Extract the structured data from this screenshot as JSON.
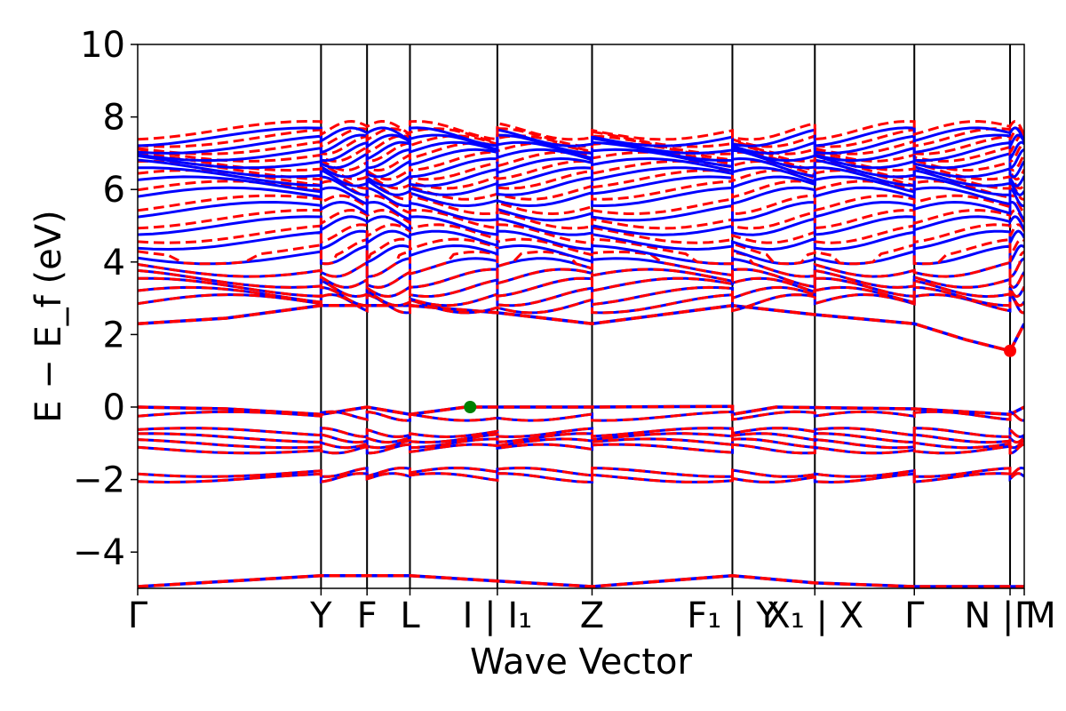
{
  "chart_data": {
    "type": "line",
    "xlabel": "Wave Vector",
    "ylabel": "E − E_f (eV)",
    "ylim": [
      -5,
      10
    ],
    "y_ticks": [
      -4,
      -2,
      0,
      2,
      4,
      6,
      8,
      10
    ],
    "y_tick_labels": [
      "−4",
      "−2",
      "0",
      "2",
      "4",
      "6",
      "8",
      "10"
    ],
    "xlim": [
      0,
      1.0
    ],
    "k_points": [
      {
        "label": "Γ",
        "x": 0.0
      },
      {
        "label": "Y",
        "x": 0.2068
      },
      {
        "label": "F",
        "x": 0.2587
      },
      {
        "label": "L",
        "x": 0.3071
      },
      {
        "label": "I | I₁",
        "x": 0.4057
      },
      {
        "label": "Z",
        "x": 0.5125
      },
      {
        "label": "F₁ | Y",
        "x": 0.6708
      },
      {
        "label": "X₁ | X",
        "x": 0.7638
      },
      {
        "label": "Γ",
        "x": 0.876
      },
      {
        "label": "N | M",
        "x": 0.984
      },
      {
        "label": "Γ",
        "x": 1.0
      }
    ],
    "vertical_lines_x": [
      0.2068,
      0.2587,
      0.3071,
      0.4057,
      0.5125,
      0.6708,
      0.7638,
      0.876,
      0.984
    ],
    "grid": false,
    "legend": "none",
    "series": [
      {
        "style": "solid",
        "color": "#0000ff"
      },
      {
        "style": "dashed",
        "color": "#ff0000"
      }
    ],
    "bands": {
      "valence_top_segment": [
        {
          "x": 0.0,
          "y": 0.0
        },
        {
          "x": 0.1,
          "y": -0.05
        },
        {
          "x": 0.2068,
          "y": -0.2
        },
        {
          "x": 0.2587,
          "y": 0.0
        },
        {
          "x": 0.3071,
          "y": -0.2
        },
        {
          "x": 0.37,
          "y": 0.0
        },
        {
          "x": 0.4057,
          "y": 0.0
        },
        {
          "x": 0.5125,
          "y": 0.0
        },
        {
          "x": 0.6708,
          "y": 0.02
        },
        {
          "x": 0.6708,
          "y": -0.2
        },
        {
          "x": 0.72,
          "y": 0.0
        },
        {
          "x": 0.876,
          "y": -0.05
        },
        {
          "x": 0.984,
          "y": -0.2
        },
        {
          "x": 1.0,
          "y": 0.0
        }
      ],
      "conduction_bottom_segment": [
        {
          "x": 0.0,
          "y": 2.3
        },
        {
          "x": 0.1,
          "y": 2.45
        },
        {
          "x": 0.2068,
          "y": 2.8
        },
        {
          "x": 0.2587,
          "y": 2.8
        },
        {
          "x": 0.3071,
          "y": 2.8
        },
        {
          "x": 0.4057,
          "y": 2.6
        },
        {
          "x": 0.5125,
          "y": 2.3
        },
        {
          "x": 0.6708,
          "y": 2.8
        },
        {
          "x": 0.7638,
          "y": 2.55
        },
        {
          "x": 0.876,
          "y": 2.3
        },
        {
          "x": 0.935,
          "y": 1.85
        },
        {
          "x": 0.984,
          "y": 1.55
        },
        {
          "x": 1.0,
          "y": 2.3
        }
      ],
      "lowest_band": [
        {
          "x": 0.0,
          "y": -4.95
        },
        {
          "x": 0.2068,
          "y": -4.65
        },
        {
          "x": 0.3071,
          "y": -4.65
        },
        {
          "x": 0.4057,
          "y": -4.8
        },
        {
          "x": 0.5125,
          "y": -4.95
        },
        {
          "x": 0.6708,
          "y": -4.65
        },
        {
          "x": 0.7638,
          "y": -4.85
        },
        {
          "x": 0.876,
          "y": -4.95
        },
        {
          "x": 0.984,
          "y": -4.95
        },
        {
          "x": 1.0,
          "y": -4.95
        }
      ]
    },
    "markers": [
      {
        "label": "VBM",
        "x": 0.375,
        "y": 0.0,
        "color": "#008000"
      },
      {
        "label": "CBM",
        "x": 0.984,
        "y": 1.55,
        "color": "#ff0000"
      }
    ]
  }
}
